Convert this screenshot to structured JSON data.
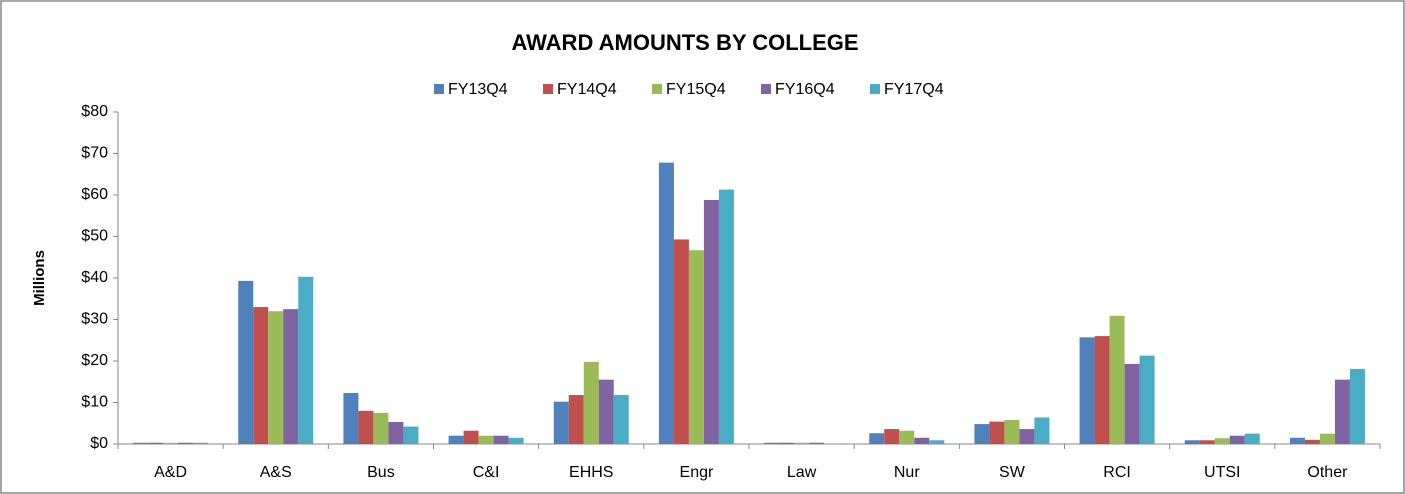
{
  "chart_data": {
    "type": "bar",
    "title": "AWARD AMOUNTS BY COLLEGE",
    "y_label": "Millions",
    "categories": [
      "A&D",
      "A&S",
      "Bus",
      "C&I",
      "EHHS",
      "Engr",
      "Law",
      "Nur",
      "SW",
      "RCI",
      "UTSI",
      "Other"
    ],
    "series": [
      {
        "name": "FY13Q4",
        "color": "#4f81bd",
        "values": [
          0.3,
          39.3,
          12.3,
          2,
          10.2,
          67.8,
          0.3,
          2.6,
          4.8,
          25.7,
          0.9,
          1.5
        ]
      },
      {
        "name": "FY14Q4",
        "color": "#c0504d",
        "values": [
          0.3,
          33,
          8,
          3.2,
          11.8,
          49.3,
          0.3,
          3.6,
          5.4,
          26,
          0.9,
          1
        ]
      },
      {
        "name": "FY15Q4",
        "color": "#9bbb59",
        "values": [
          0.3,
          32,
          7.5,
          2,
          19.8,
          46.7,
          0.3,
          3.2,
          5.8,
          30.9,
          1.4,
          2.5
        ]
      },
      {
        "name": "FY16Q4",
        "color": "#8064a2",
        "values": [
          0.3,
          32.5,
          5.3,
          2,
          15.5,
          58.8,
          0.3,
          1.5,
          3.6,
          19.3,
          2,
          15.5
        ]
      },
      {
        "name": "FY17Q4",
        "color": "#4bacc6",
        "values": [
          0.3,
          40.3,
          4.2,
          1.5,
          11.8,
          61.3,
          0.1,
          0.9,
          6.4,
          21.3,
          2.5,
          18.1
        ]
      }
    ],
    "ylim": [
      0,
      80
    ],
    "yticks": [
      {
        "value": 0,
        "label": "$0"
      },
      {
        "value": 10,
        "label": "$10"
      },
      {
        "value": 20,
        "label": "$20"
      },
      {
        "value": 30,
        "label": "$30"
      },
      {
        "value": 40,
        "label": "$40"
      },
      {
        "value": 50,
        "label": "$50"
      },
      {
        "value": 60,
        "label": "$60"
      },
      {
        "value": 70,
        "label": "$70"
      },
      {
        "value": 80,
        "label": "$80"
      }
    ],
    "legend": "top",
    "grid": false
  }
}
